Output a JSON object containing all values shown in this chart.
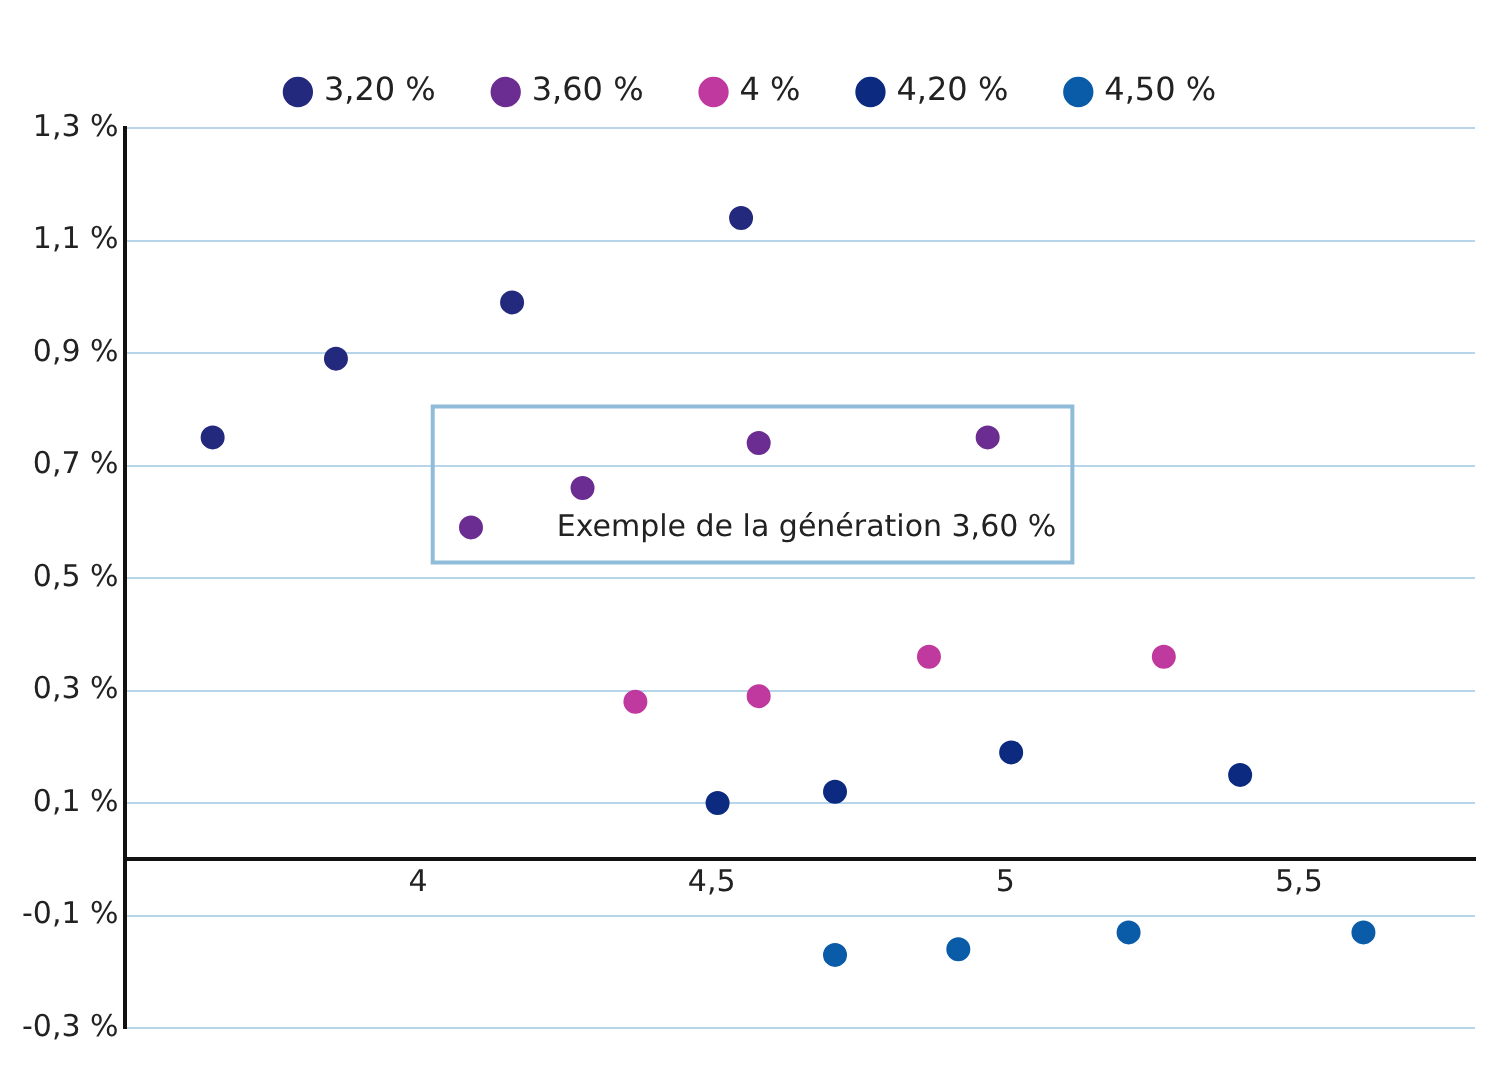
{
  "chart_data": {
    "type": "scatter",
    "series": [
      {
        "name": "3,20 %",
        "color": "#232a7e",
        "x": [
          3.65,
          3.86,
          4.16,
          4.55
        ],
        "values": [
          0.75,
          0.89,
          0.99,
          1.14
        ]
      },
      {
        "name": "3,60 %",
        "color": "#6b2d91",
        "x": [
          4.09,
          4.28,
          4.58,
          4.97
        ],
        "values": [
          0.59,
          0.66,
          0.74,
          0.75
        ]
      },
      {
        "name": "4 %",
        "color": "#c0399e",
        "x": [
          4.37,
          4.58,
          4.87,
          5.27
        ],
        "values": [
          0.28,
          0.29,
          0.36,
          0.36
        ]
      },
      {
        "name": "4,20 %",
        "color": "#0b2a80",
        "x": [
          4.51,
          4.71,
          5.01,
          5.4
        ],
        "values": [
          0.1,
          0.12,
          0.19,
          0.15
        ]
      },
      {
        "name": "4,50 %",
        "color": "#0a5ca8",
        "x": [
          4.71,
          4.92,
          5.21,
          5.61
        ],
        "values": [
          -0.17,
          -0.16,
          -0.13,
          -0.13
        ]
      }
    ],
    "xlim": [
      3.5,
      5.8
    ],
    "xticks": [
      4,
      {
        "value": 4.5,
        "label": "4,5"
      },
      5,
      {
        "value": 5.5,
        "label": "5,5"
      }
    ],
    "ylim": [
      -0.3,
      1.3
    ],
    "yticks": [
      {
        "value": -0.3,
        "label": "-0,3 %"
      },
      {
        "value": -0.1,
        "label": "-0,1 %"
      },
      {
        "value": 0.1,
        "label": "0,1 %"
      },
      {
        "value": 0.3,
        "label": "0,3 %"
      },
      {
        "value": 0.5,
        "label": "0,5 %"
      },
      {
        "value": 0.7,
        "label": "0,7 %"
      },
      {
        "value": 0.9,
        "label": "0,9 %"
      },
      {
        "value": 1.1,
        "label": "1,1 %"
      },
      {
        "value": 1.3,
        "label": "1,3 %"
      }
    ],
    "annotations": [
      "Exemple de la génération 3,60 %"
    ],
    "grid": "y",
    "legend": "top",
    "marker": "circle"
  }
}
